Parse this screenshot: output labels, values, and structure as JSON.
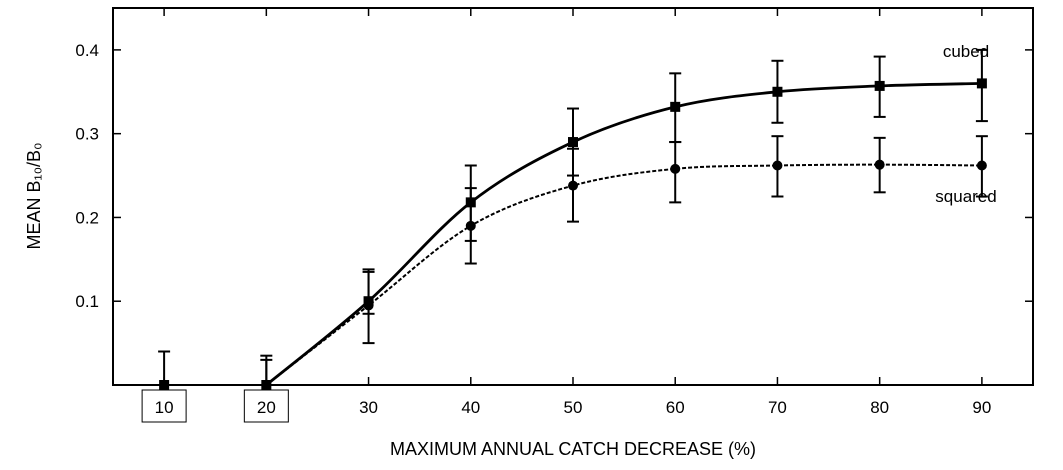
{
  "chart_data": {
    "type": "line",
    "title": "",
    "xlabel": "MAXIMUM ANNUAL CATCH DECREASE (%)",
    "ylabel": "MEAN B₁₀/B₀",
    "xlim": [
      5,
      95
    ],
    "ylim": [
      0,
      0.45
    ],
    "x_ticks": [
      10,
      20,
      30,
      40,
      50,
      60,
      70,
      80,
      90
    ],
    "x_tick_labels": [
      "10",
      "20",
      "30",
      "40",
      "50",
      "60",
      "70",
      "80",
      "90"
    ],
    "boxed_x_ticks": [
      "10",
      "20"
    ],
    "y_ticks": [
      0.1,
      0.2,
      0.3,
      0.4
    ],
    "y_tick_labels": [
      "0.1",
      "0.2",
      "0.3",
      "0.4"
    ],
    "grid": false,
    "legend": "none (series labeled directly on plot)",
    "series": [
      {
        "name": "cubed",
        "line_style": "solid",
        "marker": "square",
        "x": [
          10,
          20,
          30,
          40,
          50,
          60,
          70,
          80,
          90
        ],
        "y": [
          0.0,
          0.0,
          0.1,
          0.218,
          0.29,
          0.332,
          0.35,
          0.357,
          0.36
        ],
        "err_low": [
          0.0,
          0.0,
          0.085,
          0.172,
          0.25,
          0.29,
          0.313,
          0.32,
          0.315
        ],
        "err_high": [
          0.04,
          0.035,
          0.135,
          0.262,
          0.33,
          0.372,
          0.387,
          0.392,
          0.4
        ]
      },
      {
        "name": "squared",
        "line_style": "dotted",
        "marker": "circle",
        "x": [
          20,
          30,
          40,
          50,
          60,
          70,
          80,
          90
        ],
        "y": [
          0.0,
          0.095,
          0.19,
          0.238,
          0.258,
          0.262,
          0.263,
          0.262
        ],
        "err_low": [
          0.0,
          0.05,
          0.145,
          0.195,
          0.218,
          0.225,
          0.23,
          0.225
        ],
        "err_high": [
          0.03,
          0.138,
          0.235,
          0.282,
          0.29,
          0.297,
          0.295,
          0.297
        ]
      }
    ]
  }
}
